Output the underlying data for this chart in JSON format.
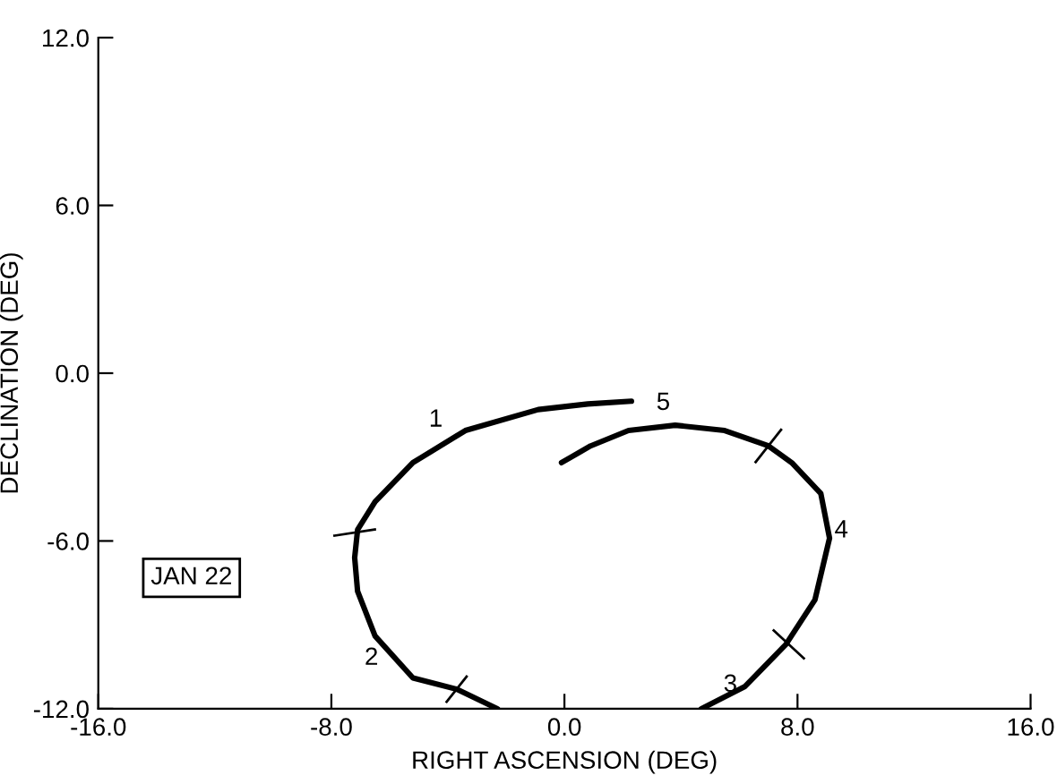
{
  "chart_data": {
    "type": "line",
    "xlabel": "RIGHT ASCENSION (DEG)",
    "ylabel": "DECLINATION (DEG)",
    "xlim": [
      -16,
      16
    ],
    "ylim": [
      -12,
      12
    ],
    "xticks": [
      {
        "value": -16,
        "label": "-16.0"
      },
      {
        "value": -8,
        "label": "-8.0"
      },
      {
        "value": 0,
        "label": "0.0"
      },
      {
        "value": 8,
        "label": "8.0"
      },
      {
        "value": 16,
        "label": "16.0"
      }
    ],
    "yticks": [
      {
        "value": -12,
        "label": "-12.0"
      },
      {
        "value": -6,
        "label": "-6.0"
      },
      {
        "value": 0,
        "label": "0.0"
      },
      {
        "value": 6,
        "label": "6.0"
      },
      {
        "value": 12,
        "label": "12.0"
      }
    ],
    "grid": false,
    "legend": false,
    "marker": "none",
    "line_style": "solid",
    "series": [
      {
        "color": "#000000",
        "x": [
          2.3,
          0.8,
          -0.9,
          -3.4,
          -5.2,
          -6.5,
          -7.1,
          -7.2,
          -7.1,
          -6.5,
          -5.2,
          -3.7,
          -2.3
        ],
        "values": [
          -1.0,
          -1.1,
          -1.3,
          -2.05,
          -3.2,
          -4.6,
          -5.6,
          -6.6,
          -7.8,
          -9.4,
          -10.9,
          -11.3,
          -12.0
        ]
      },
      {
        "color": "#000000",
        "x": [
          4.7,
          6.2,
          7.6,
          8.6,
          9.1,
          8.8,
          7.8,
          7.0,
          5.5,
          3.8,
          2.2,
          0.9,
          -0.1
        ],
        "values": [
          -12.0,
          -11.2,
          -9.7,
          -8.1,
          -5.9,
          -4.3,
          -3.2,
          -2.6,
          -2.05,
          -1.86,
          -2.05,
          -2.6,
          -3.2
        ]
      }
    ],
    "annotations": [
      "1",
      "2",
      "3",
      "4",
      "5",
      "JAN 22"
    ]
  }
}
